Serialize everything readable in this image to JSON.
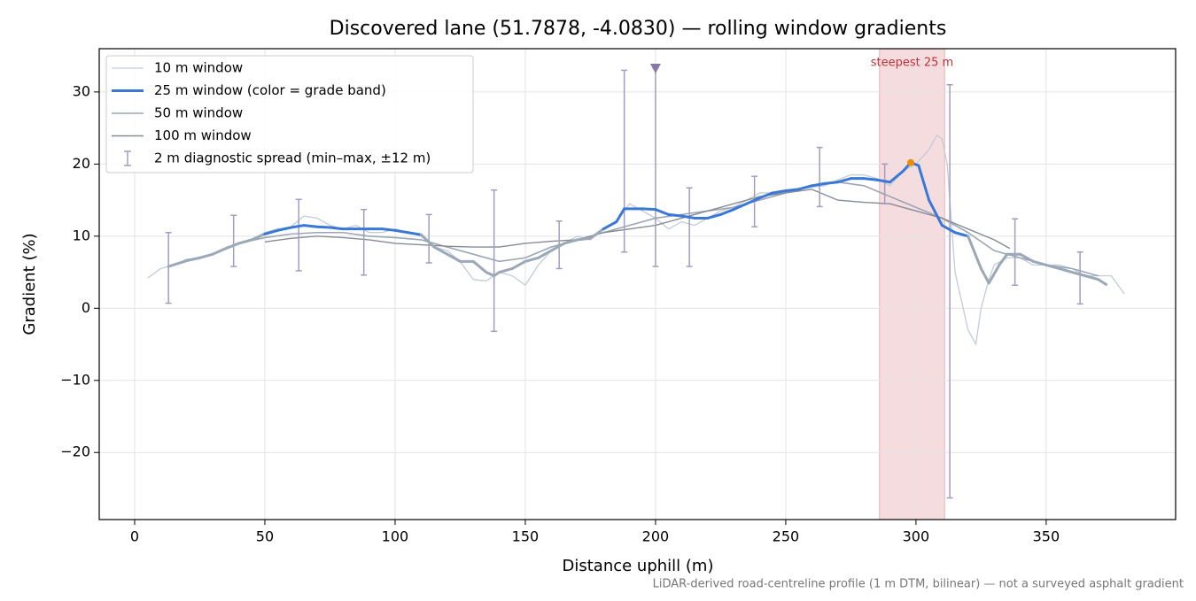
{
  "chart_data": {
    "type": "line",
    "title": "Discovered lane (51.7878, -4.0830) — rolling window gradients",
    "x_label": "Distance uphill (m)",
    "y_label": "Gradient (%)",
    "footnote": "LiDAR-derived road-centreline profile (1 m DTM, bilinear) — not a surveyed asphalt gradient",
    "xlim": [
      -13.6,
      399.7
    ],
    "ylim": [
      -29.3,
      36
    ],
    "xticks": [
      0,
      50,
      100,
      150,
      200,
      250,
      300,
      350
    ],
    "yticks": [
      {
        "value": -20,
        "label": "−20"
      },
      {
        "value": -10,
        "label": "−10"
      },
      0,
      10,
      20,
      30
    ],
    "grid": true,
    "legend": "upper left",
    "series": [
      {
        "name": "10 m window",
        "color": "#c3cbd5",
        "width": 1.3,
        "x": [
          5,
          10,
          15,
          20,
          25,
          30,
          35,
          40,
          45,
          50,
          55,
          60,
          65,
          70,
          75,
          80,
          85,
          90,
          95,
          100,
          105,
          110,
          115,
          120,
          125,
          130,
          135,
          140,
          145,
          150,
          155,
          160,
          165,
          170,
          175,
          180,
          185,
          190,
          195,
          200,
          205,
          210,
          215,
          220,
          225,
          230,
          235,
          240,
          245,
          250,
          255,
          260,
          265,
          270,
          275,
          280,
          285,
          290,
          295,
          300,
          305,
          308,
          310,
          312,
          315,
          320,
          323,
          325,
          328,
          330,
          335,
          340,
          345,
          350,
          355,
          360,
          365,
          370,
          375,
          380
        ],
        "values": [
          4.2,
          5.5,
          6,
          6.8,
          7,
          7.5,
          8.2,
          9,
          9.6,
          10.5,
          11,
          11.3,
          12.8,
          12.5,
          11.5,
          11,
          11.5,
          10.5,
          10.5,
          11,
          10.5,
          10,
          8.5,
          8,
          6.5,
          4,
          3.8,
          5,
          4.5,
          3.2,
          6,
          8,
          9,
          10,
          9.5,
          11,
          12,
          14.5,
          13.5,
          12.5,
          11,
          12,
          11.5,
          12.5,
          13.5,
          14,
          15,
          16,
          16,
          16.2,
          16.5,
          16.8,
          17,
          17.8,
          18.5,
          18.5,
          18,
          17,
          19,
          20,
          22,
          24,
          23.5,
          20,
          5,
          -3,
          -5,
          0,
          4,
          6,
          7,
          7,
          6,
          6,
          6,
          5.5,
          4.5,
          4.5,
          4.5,
          2
        ]
      },
      {
        "name": "25 m window (color = grade band)",
        "color": "#3a78d8",
        "band_color": "#9aa8b8",
        "grade_band_min": 10,
        "width": 3,
        "x": [
          13,
          20,
          25,
          30,
          35,
          40,
          45,
          50,
          55,
          60,
          65,
          70,
          75,
          80,
          85,
          90,
          95,
          100,
          105,
          110,
          115,
          120,
          125,
          130,
          135,
          138,
          140,
          145,
          150,
          155,
          160,
          165,
          170,
          175,
          180,
          185,
          188,
          195,
          200,
          205,
          210,
          215,
          220,
          225,
          230,
          235,
          240,
          245,
          250,
          255,
          260,
          265,
          270,
          275,
          280,
          285,
          290,
          295,
          298,
          301,
          305,
          310,
          315,
          320,
          325,
          328,
          332,
          335,
          340,
          345,
          350,
          355,
          360,
          365,
          370,
          373
        ],
        "values": [
          5.8,
          6.6,
          7,
          7.5,
          8.3,
          9,
          9.5,
          10.3,
          10.8,
          11.2,
          11.5,
          11.3,
          11.2,
          11,
          11,
          11,
          11,
          10.8,
          10.5,
          10.2,
          8.5,
          7.5,
          6.5,
          6.5,
          5,
          4.5,
          5,
          5.5,
          6.5,
          7,
          8,
          9,
          9.5,
          9.7,
          11,
          12,
          13.8,
          13.8,
          13.7,
          13,
          12.8,
          12.5,
          12.5,
          13,
          13.7,
          14.5,
          15.3,
          16,
          16.3,
          16.5,
          17,
          17.3,
          17.5,
          18,
          18,
          17.8,
          17.5,
          19,
          20.2,
          19.8,
          15,
          11.5,
          10.5,
          10,
          5.5,
          3.5,
          6,
          7.5,
          7.5,
          6.5,
          6,
          5.5,
          5,
          4.5,
          4,
          3.3
        ]
      },
      {
        "name": "50 m window",
        "color": "#9ba6b5",
        "width": 1.6,
        "x": [
          25,
          30,
          40,
          50,
          60,
          70,
          80,
          90,
          100,
          110,
          120,
          130,
          140,
          150,
          160,
          170,
          180,
          190,
          200,
          210,
          220,
          230,
          240,
          250,
          260,
          270,
          280,
          290,
          300,
          310,
          320,
          330,
          340,
          350,
          360,
          370
        ],
        "values": [
          7,
          7.5,
          9,
          9.8,
          10.3,
          10.5,
          10.5,
          10,
          9.8,
          9.5,
          8.5,
          7.5,
          6.5,
          7,
          8.5,
          9.5,
          10.5,
          11.5,
          12.5,
          13,
          13.5,
          14,
          15,
          16,
          17,
          17.5,
          17,
          15.5,
          14,
          12.5,
          10.5,
          8,
          7,
          6,
          5.5,
          4.5
        ]
      },
      {
        "name": "100 m window",
        "color": "#858b96",
        "width": 1.4,
        "x": [
          50,
          60,
          70,
          80,
          90,
          100,
          110,
          120,
          130,
          140,
          150,
          160,
          170,
          180,
          190,
          200,
          210,
          220,
          230,
          240,
          250,
          260,
          270,
          280,
          290,
          300,
          310,
          320,
          330,
          336
        ],
        "values": [
          9.2,
          9.7,
          10,
          9.8,
          9.5,
          9,
          8.8,
          8.6,
          8.5,
          8.5,
          9,
          9.3,
          9.5,
          10.5,
          11,
          11.5,
          12.5,
          13.5,
          14.5,
          15.5,
          16,
          16.5,
          15,
          14.7,
          14.5,
          13.5,
          12.5,
          11,
          9.5,
          8.3
        ]
      },
      {
        "name": "2 m diagnostic spread (min–max, ±12 m)",
        "type": "errorbar",
        "color": "#a49cc0",
        "x": [
          13,
          38,
          63,
          88,
          113,
          138,
          163,
          188,
          200,
          213,
          238,
          263,
          288,
          313,
          338,
          363
        ],
        "values": [
          5.8,
          9,
          11.3,
          11,
          10,
          4.5,
          8,
          13.8,
          13.7,
          12.8,
          15,
          17.3,
          17.7,
          10.8,
          7.5,
          5
        ],
        "low": [
          0.7,
          5.8,
          5.2,
          4.6,
          6.3,
          -3.2,
          5.5,
          7.8,
          5.8,
          5.8,
          11.3,
          14.1,
          14.5,
          -26.3,
          3.2,
          0.6
        ],
        "high": [
          10.5,
          12.9,
          15.1,
          13.7,
          13,
          16.4,
          12.1,
          33,
          33.3,
          16.7,
          18.3,
          22.3,
          20,
          31,
          12.4,
          7.8
        ]
      }
    ],
    "span": {
      "x": [
        286,
        311
      ],
      "label": "steepest 25 m",
      "color": "#e8b4b8",
      "label_color": "#c0303a"
    },
    "markers": [
      {
        "x": 200,
        "y": 33.3,
        "shape": "triangle",
        "color": "#8878a8"
      },
      {
        "x": 298,
        "y": 20.2,
        "shape": "dot",
        "color": "#f08c00"
      }
    ]
  }
}
